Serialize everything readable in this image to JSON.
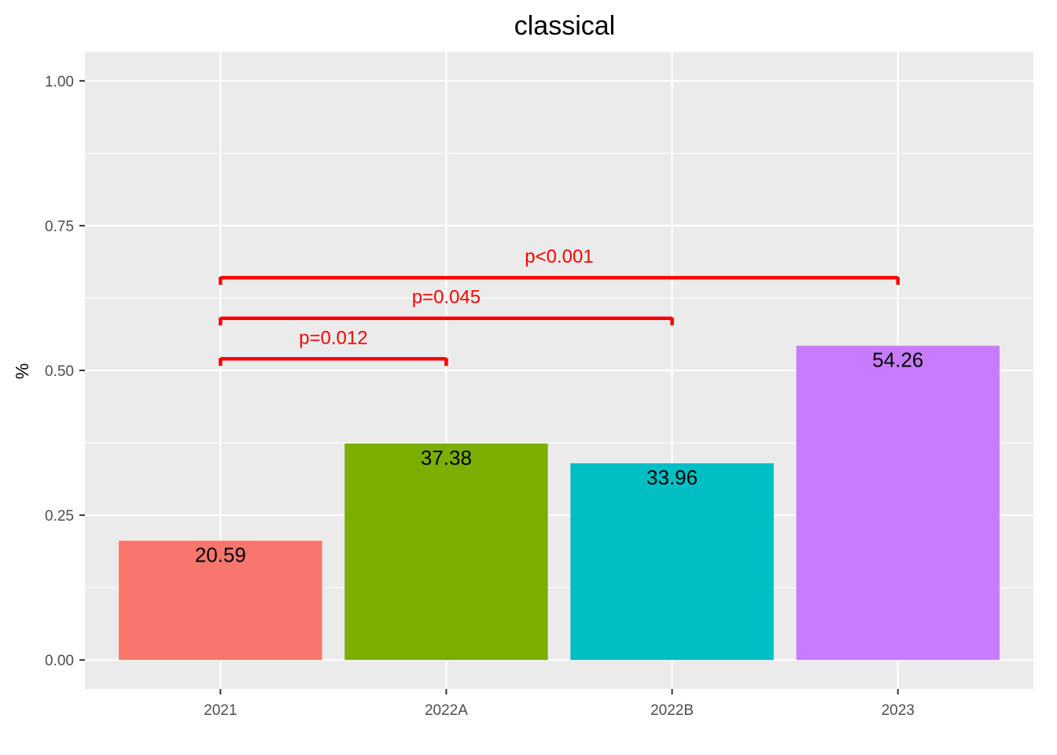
{
  "chart_data": {
    "type": "bar",
    "title": "classical",
    "xlabel": "",
    "ylabel": "%",
    "categories": [
      "2021",
      "2022A",
      "2022B",
      "2023"
    ],
    "values": [
      0.2059,
      0.3738,
      0.3396,
      0.5426
    ],
    "data_labels": [
      "20.59",
      "37.38",
      "33.96",
      "54.26"
    ],
    "colors": [
      "#F8766D",
      "#7CAE00",
      "#00BFC4",
      "#C77CFF"
    ],
    "ylim": [
      -0.05,
      1.05
    ],
    "y_ticks": [
      0,
      0.25,
      0.5,
      0.75,
      1
    ],
    "y_tick_labels": [
      "0.00",
      "0.25",
      "0.50",
      "0.75",
      "1.00"
    ],
    "grid": true,
    "legend": "none",
    "panel_background": "#EBEBEB",
    "annotation_color": "#FF0000",
    "comparisons": [
      {
        "from": "2021",
        "to": "2022A",
        "y": 0.52,
        "label": "p=0.012"
      },
      {
        "from": "2021",
        "to": "2022B",
        "y": 0.59,
        "label": "p=0.045"
      },
      {
        "from": "2021",
        "to": "2023",
        "y": 0.66,
        "label": "p<0.001"
      }
    ]
  }
}
